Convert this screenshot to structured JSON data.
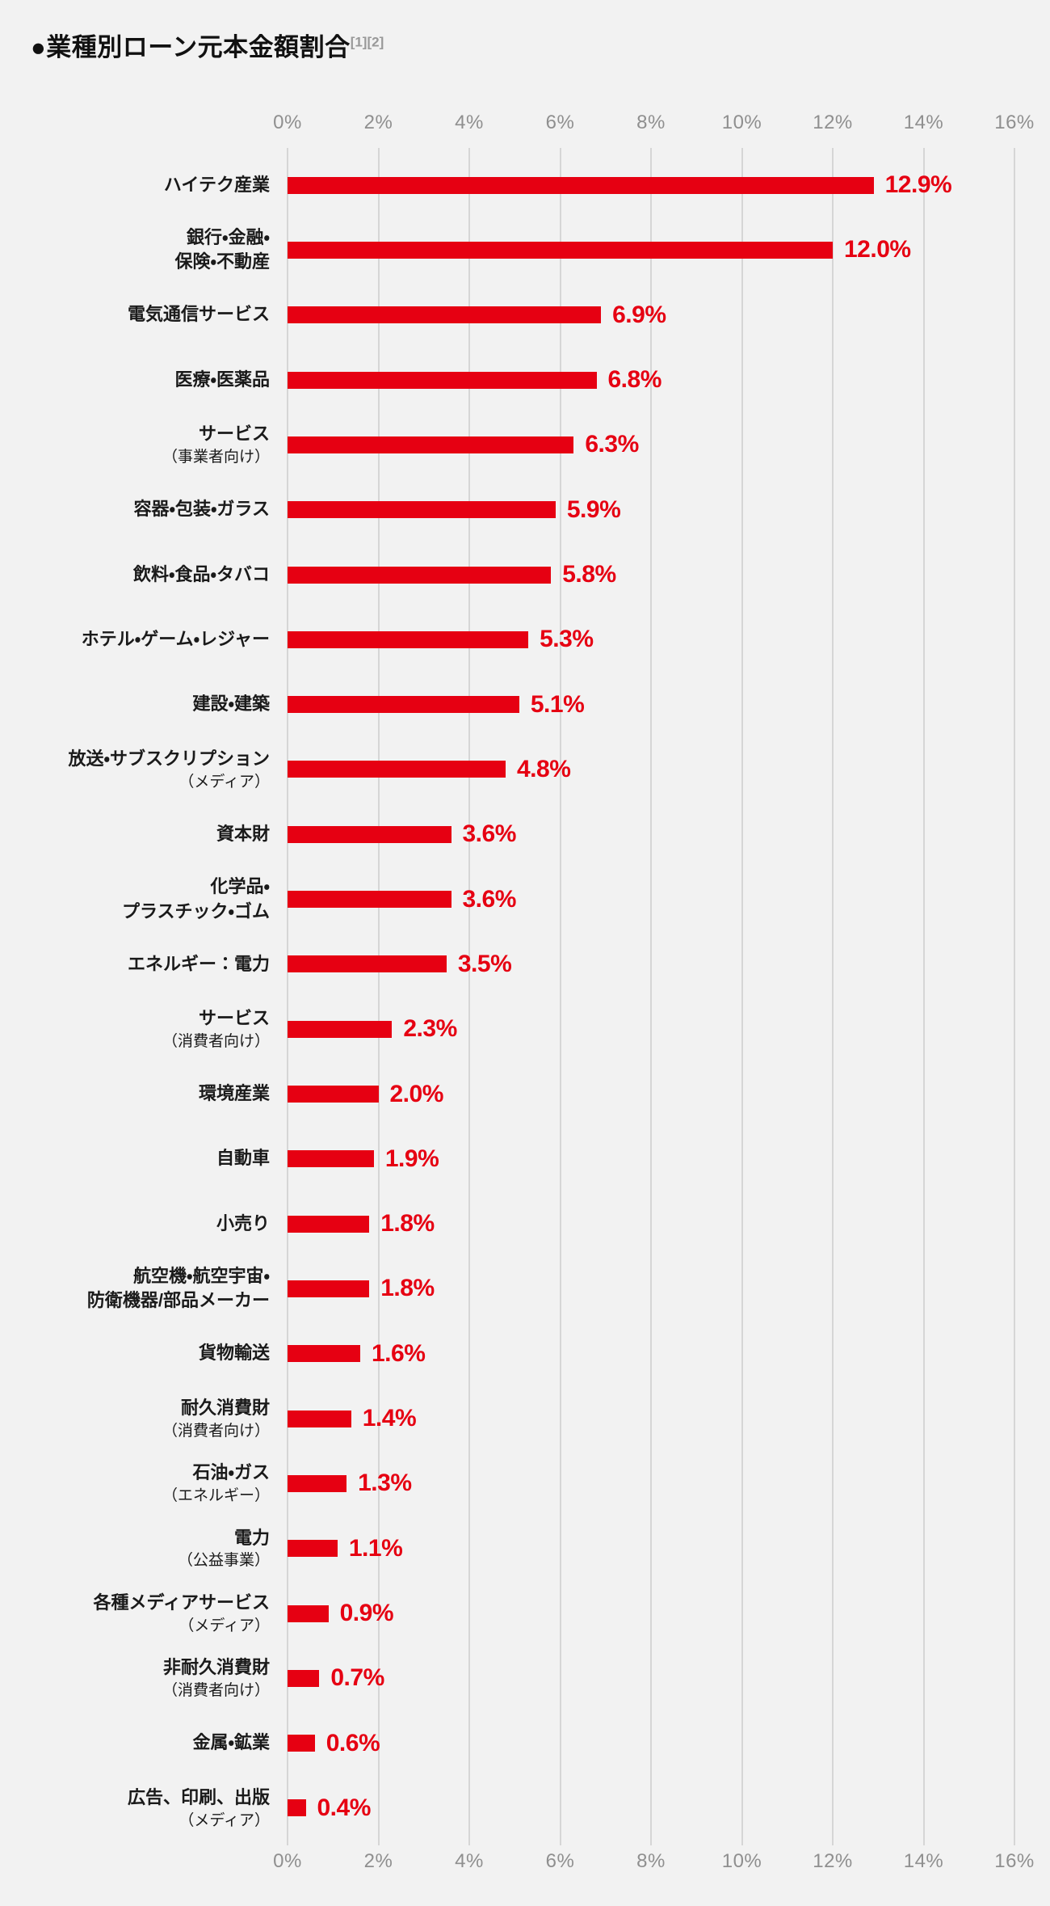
{
  "title": {
    "text": "●業種別ローン元本金額割合",
    "superscript": "[1][2]"
  },
  "colors": {
    "background": "#f2f2f2",
    "bar": "#e60012",
    "value_text": "#e60012",
    "gridline": "#d6d6d6",
    "axis_text": "#8f8f8f",
    "label_text": "#1a1a1a",
    "title_text": "#111111",
    "superscript_text": "#999999"
  },
  "chart_data": {
    "type": "bar",
    "orientation": "horizontal",
    "title": "業種別ローン元本金額割合",
    "footnote_refs": "[1][2]",
    "xlabel": "",
    "ylabel": "",
    "value_suffix": "%",
    "axis": {
      "min": 0,
      "max": 16,
      "step": 2,
      "ticks": [
        "0%",
        "2%",
        "4%",
        "6%",
        "8%",
        "10%",
        "12%",
        "14%",
        "16%"
      ],
      "position": "top-and-bottom",
      "grid": true
    },
    "rows": [
      {
        "label_lines": [
          "ハイテク産業"
        ],
        "sublabel": "",
        "value": 12.9,
        "value_label": "12.9%"
      },
      {
        "label_lines": [
          "銀行・金融・",
          "保険・不動産"
        ],
        "sublabel": "",
        "value": 12.0,
        "value_label": "12.0%"
      },
      {
        "label_lines": [
          "電気通信サービス"
        ],
        "sublabel": "",
        "value": 6.9,
        "value_label": "6.9%"
      },
      {
        "label_lines": [
          "医療・医薬品"
        ],
        "sublabel": "",
        "value": 6.8,
        "value_label": "6.8%"
      },
      {
        "label_lines": [
          "サービス"
        ],
        "sublabel": "（事業者向け）",
        "value": 6.3,
        "value_label": "6.3%"
      },
      {
        "label_lines": [
          "容器・包装・ガラス"
        ],
        "sublabel": "",
        "value": 5.9,
        "value_label": "5.9%"
      },
      {
        "label_lines": [
          "飲料・食品・タバコ"
        ],
        "sublabel": "",
        "value": 5.8,
        "value_label": "5.8%"
      },
      {
        "label_lines": [
          "ホテル・ゲーム・レジャー"
        ],
        "sublabel": "",
        "value": 5.3,
        "value_label": "5.3%"
      },
      {
        "label_lines": [
          "建設・建築"
        ],
        "sublabel": "",
        "value": 5.1,
        "value_label": "5.1%"
      },
      {
        "label_lines": [
          "放送・サブスクリプション"
        ],
        "sublabel": "（メディア）",
        "value": 4.8,
        "value_label": "4.8%"
      },
      {
        "label_lines": [
          "資本財"
        ],
        "sublabel": "",
        "value": 3.6,
        "value_label": "3.6%"
      },
      {
        "label_lines": [
          "化学品・",
          "プラスチック・ゴム"
        ],
        "sublabel": "",
        "value": 3.6,
        "value_label": "3.6%"
      },
      {
        "label_lines": [
          "エネルギー：電力"
        ],
        "sublabel": "",
        "value": 3.5,
        "value_label": "3.5%"
      },
      {
        "label_lines": [
          "サービス"
        ],
        "sublabel": "（消費者向け）",
        "value": 2.3,
        "value_label": "2.3%"
      },
      {
        "label_lines": [
          "環境産業"
        ],
        "sublabel": "",
        "value": 2.0,
        "value_label": "2.0%"
      },
      {
        "label_lines": [
          "自動車"
        ],
        "sublabel": "",
        "value": 1.9,
        "value_label": "1.9%"
      },
      {
        "label_lines": [
          "小売り"
        ],
        "sublabel": "",
        "value": 1.8,
        "value_label": "1.8%"
      },
      {
        "label_lines": [
          "航空機・航空宇宙・",
          "防衛機器/部品メーカー"
        ],
        "sublabel": "",
        "value": 1.8,
        "value_label": "1.8%"
      },
      {
        "label_lines": [
          "貨物輸送"
        ],
        "sublabel": "",
        "value": 1.6,
        "value_label": "1.6%"
      },
      {
        "label_lines": [
          "耐久消費財"
        ],
        "sublabel": "（消費者向け）",
        "value": 1.4,
        "value_label": "1.4%"
      },
      {
        "label_lines": [
          "石油・ガス"
        ],
        "sublabel": "（エネルギー）",
        "value": 1.3,
        "value_label": "1.3%"
      },
      {
        "label_lines": [
          "電力"
        ],
        "sublabel": "（公益事業）",
        "value": 1.1,
        "value_label": "1.1%"
      },
      {
        "label_lines": [
          "各種メディアサービス"
        ],
        "sublabel": "（メディア）",
        "value": 0.9,
        "value_label": "0.9%"
      },
      {
        "label_lines": [
          "非耐久消費財"
        ],
        "sublabel": "（消費者向け）",
        "value": 0.7,
        "value_label": "0.7%"
      },
      {
        "label_lines": [
          "金属・鉱業"
        ],
        "sublabel": "",
        "value": 0.6,
        "value_label": "0.6%"
      },
      {
        "label_lines": [
          "広告、印刷、出版"
        ],
        "sublabel": "（メディア）",
        "value": 0.4,
        "value_label": "0.4%"
      }
    ]
  }
}
